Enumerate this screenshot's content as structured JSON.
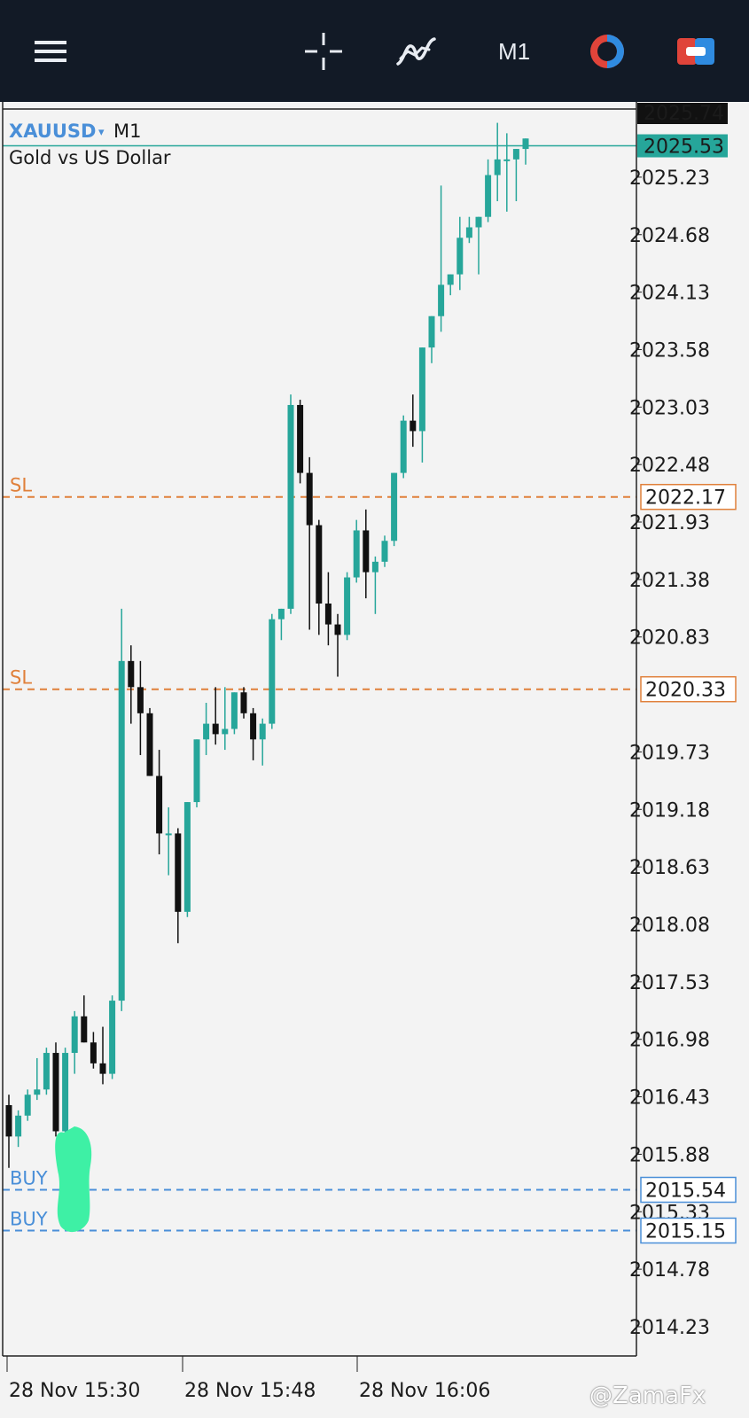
{
  "toolbar": {
    "menu_icon": "hamburger-menu-icon",
    "crosshair_icon": "crosshair-icon",
    "indicators_icon": "indicators-icon",
    "timeframe": "M1",
    "objects_icon": "objects-icon",
    "trade_icon": "trade-icon"
  },
  "colors": {
    "toolbar_bg": "#121a26",
    "chart_bg": "#f3f3f3",
    "bull": "#26a69a",
    "bear": "#111111",
    "sl": "#e0803a",
    "buy": "#4a8fd8",
    "symbol": "#4a8fd8"
  },
  "symbol_info": {
    "symbol": "XAUUSD",
    "dropdown_marker": "▾",
    "timeframe": "M1",
    "description": "Gold vs US Dollar"
  },
  "watermark": "@ZamaFx",
  "chart_data": {
    "type": "candlestick",
    "symbol": "XAUUSD",
    "timeframe": "M1",
    "ylim": [
      13.95,
      25.95
    ],
    "price_base": 2000,
    "y_ticks": [
      "2025.23",
      "2024.68",
      "2024.13",
      "2023.58",
      "2023.03",
      "2022.48",
      "2021.93",
      "2021.38",
      "2020.83",
      "2019.73",
      "2019.18",
      "2018.63",
      "2018.08",
      "2017.53",
      "2016.98",
      "2016.43",
      "2015.88",
      "2015.33",
      "2014.78",
      "2014.23"
    ],
    "x_labels": [
      "28 Nov 15:30",
      "28 Nov 15:48",
      "28 Nov 16:06"
    ],
    "bid_price": "2025.74",
    "ask_price": "2025.53",
    "levels": [
      {
        "label": "SL",
        "price": "2022.17",
        "kind": "sl"
      },
      {
        "label": "SL",
        "price": "2020.33",
        "kind": "sl"
      },
      {
        "label": "BUY",
        "price": "2015.54",
        "kind": "buy"
      },
      {
        "label": "BUY",
        "price": "2015.15",
        "kind": "buy"
      }
    ],
    "candles": [
      {
        "o": 16.35,
        "h": 16.45,
        "l": 15.75,
        "c": 16.05
      },
      {
        "o": 16.05,
        "h": 16.3,
        "l": 15.95,
        "c": 16.25
      },
      {
        "o": 16.25,
        "h": 16.5,
        "l": 16.2,
        "c": 16.45
      },
      {
        "o": 16.45,
        "h": 16.8,
        "l": 16.4,
        "c": 16.5
      },
      {
        "o": 16.5,
        "h": 16.9,
        "l": 16.45,
        "c": 16.85
      },
      {
        "o": 16.85,
        "h": 16.95,
        "l": 16.05,
        "c": 16.1
      },
      {
        "o": 16.1,
        "h": 16.9,
        "l": 16.05,
        "c": 16.85
      },
      {
        "o": 16.85,
        "h": 17.25,
        "l": 16.65,
        "c": 17.2
      },
      {
        "o": 17.2,
        "h": 17.4,
        "l": 16.95,
        "c": 16.95
      },
      {
        "o": 16.95,
        "h": 17.05,
        "l": 16.7,
        "c": 16.75
      },
      {
        "o": 16.75,
        "h": 17.1,
        "l": 16.55,
        "c": 16.65
      },
      {
        "o": 16.65,
        "h": 17.4,
        "l": 16.6,
        "c": 17.35
      },
      {
        "o": 17.35,
        "h": 21.1,
        "l": 17.25,
        "c": 20.6
      },
      {
        "o": 20.6,
        "h": 20.75,
        "l": 20.0,
        "c": 20.35
      },
      {
        "o": 20.35,
        "h": 20.6,
        "l": 19.7,
        "c": 20.1
      },
      {
        "o": 20.1,
        "h": 20.15,
        "l": 19.5,
        "c": 19.5
      },
      {
        "o": 19.5,
        "h": 19.75,
        "l": 18.75,
        "c": 18.95
      },
      {
        "o": 18.95,
        "h": 19.2,
        "l": 18.55,
        "c": 18.95
      },
      {
        "o": 18.95,
        "h": 19.0,
        "l": 17.9,
        "c": 18.2
      },
      {
        "o": 18.2,
        "h": 19.25,
        "l": 18.15,
        "c": 19.25
      },
      {
        "o": 19.25,
        "h": 19.85,
        "l": 19.2,
        "c": 19.85
      },
      {
        "o": 19.85,
        "h": 20.2,
        "l": 19.7,
        "c": 20.0
      },
      {
        "o": 20.0,
        "h": 20.35,
        "l": 19.8,
        "c": 19.9
      },
      {
        "o": 19.9,
        "h": 20.35,
        "l": 19.75,
        "c": 19.95
      },
      {
        "o": 19.95,
        "h": 20.3,
        "l": 19.9,
        "c": 20.3
      },
      {
        "o": 20.3,
        "h": 20.35,
        "l": 20.05,
        "c": 20.1
      },
      {
        "o": 20.1,
        "h": 20.15,
        "l": 19.65,
        "c": 19.85
      },
      {
        "o": 19.85,
        "h": 20.05,
        "l": 19.6,
        "c": 20.0
      },
      {
        "o": 20.0,
        "h": 21.05,
        "l": 19.95,
        "c": 21.0
      },
      {
        "o": 21.0,
        "h": 21.1,
        "l": 20.8,
        "c": 21.1
      },
      {
        "o": 21.1,
        "h": 23.15,
        "l": 21.05,
        "c": 23.05
      },
      {
        "o": 23.05,
        "h": 23.1,
        "l": 22.3,
        "c": 22.4
      },
      {
        "o": 22.4,
        "h": 22.55,
        "l": 20.9,
        "c": 21.9
      },
      {
        "o": 21.9,
        "h": 21.95,
        "l": 20.85,
        "c": 21.15
      },
      {
        "o": 21.15,
        "h": 21.45,
        "l": 20.75,
        "c": 20.95
      },
      {
        "o": 20.95,
        "h": 21.05,
        "l": 20.45,
        "c": 20.85
      },
      {
        "o": 20.85,
        "h": 21.45,
        "l": 20.8,
        "c": 21.4
      },
      {
        "o": 21.4,
        "h": 21.95,
        "l": 21.35,
        "c": 21.85
      },
      {
        "o": 21.85,
        "h": 22.05,
        "l": 21.2,
        "c": 21.45
      },
      {
        "o": 21.45,
        "h": 21.6,
        "l": 21.05,
        "c": 21.55
      },
      {
        "o": 21.55,
        "h": 21.8,
        "l": 21.5,
        "c": 21.75
      },
      {
        "o": 21.75,
        "h": 22.4,
        "l": 21.7,
        "c": 22.4
      },
      {
        "o": 22.4,
        "h": 22.95,
        "l": 22.35,
        "c": 22.9
      },
      {
        "o": 22.9,
        "h": 23.15,
        "l": 22.65,
        "c": 22.8
      },
      {
        "o": 22.8,
        "h": 23.6,
        "l": 22.5,
        "c": 23.6
      },
      {
        "o": 23.6,
        "h": 23.9,
        "l": 23.45,
        "c": 23.9
      },
      {
        "o": 23.9,
        "h": 25.15,
        "l": 23.75,
        "c": 24.2
      },
      {
        "o": 24.2,
        "h": 24.3,
        "l": 24.1,
        "c": 24.3
      },
      {
        "o": 24.3,
        "h": 24.85,
        "l": 24.15,
        "c": 24.65
      },
      {
        "o": 24.65,
        "h": 24.85,
        "l": 24.6,
        "c": 24.75
      },
      {
        "o": 24.75,
        "h": 24.85,
        "l": 24.3,
        "c": 24.85
      },
      {
        "o": 24.85,
        "h": 25.4,
        "l": 24.8,
        "c": 25.25
      },
      {
        "o": 25.25,
        "h": 25.75,
        "l": 25.0,
        "c": 25.4
      },
      {
        "o": 25.4,
        "h": 25.65,
        "l": 24.9,
        "c": 25.4
      },
      {
        "o": 25.4,
        "h": 25.5,
        "l": 25.0,
        "c": 25.5
      },
      {
        "o": 25.5,
        "h": 25.6,
        "l": 25.35,
        "c": 25.6
      }
    ]
  }
}
